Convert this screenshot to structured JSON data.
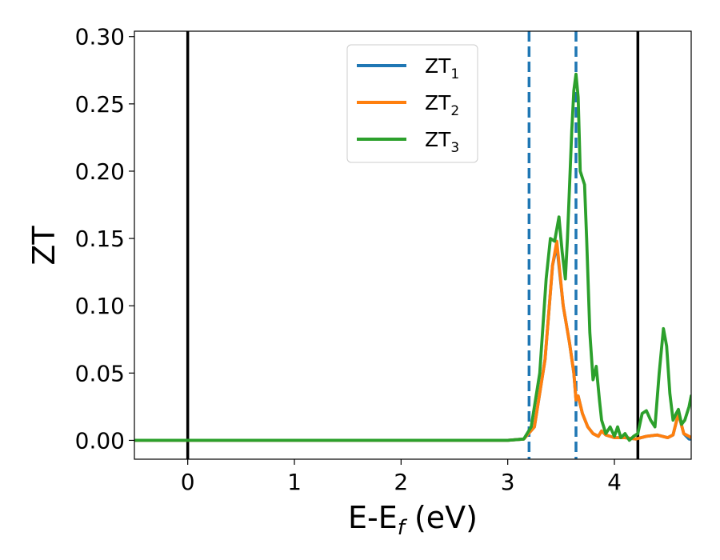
{
  "chart_data": {
    "type": "line",
    "xlabel": {
      "main": "E-E",
      "sub": "f",
      "unit": " (eV)"
    },
    "ylabel": "ZT",
    "xlim": [
      -0.5,
      4.72
    ],
    "ylim": [
      -0.014,
      0.304
    ],
    "xticks": [
      0,
      1,
      2,
      3,
      4
    ],
    "xtick_labels": [
      "0",
      "1",
      "2",
      "3",
      "4"
    ],
    "yticks": [
      0.0,
      0.05,
      0.1,
      0.15,
      0.2,
      0.25,
      0.3
    ],
    "ytick_labels": [
      "0.00",
      "0.05",
      "0.10",
      "0.15",
      "0.20",
      "0.25",
      "0.30"
    ],
    "grid": false,
    "legend_position": "upper center",
    "vlines": [
      {
        "x": 0.0,
        "style": "solid",
        "color": "#000000"
      },
      {
        "x": 4.22,
        "style": "solid",
        "color": "#000000"
      },
      {
        "x": 3.2,
        "style": "dashed",
        "color": "#1f77b4"
      },
      {
        "x": 3.64,
        "style": "dashed",
        "color": "#1f77b4"
      }
    ],
    "series": [
      {
        "name": "ZT",
        "sub": "1",
        "color": "#1f77b4",
        "x": [
          -0.5,
          3.0,
          3.15,
          3.25,
          3.35,
          3.42,
          3.46,
          3.52,
          3.58,
          3.62,
          3.64,
          3.66,
          3.7,
          3.75,
          3.8,
          3.85,
          3.88,
          3.92,
          4.0,
          4.1,
          4.2,
          4.3,
          4.4,
          4.5,
          4.55,
          4.6,
          4.65,
          4.7,
          4.72
        ],
        "y": [
          0.0,
          0.0,
          0.001,
          0.01,
          0.06,
          0.13,
          0.145,
          0.1,
          0.072,
          0.05,
          0.03,
          0.033,
          0.02,
          0.01,
          0.005,
          0.003,
          0.007,
          0.004,
          0.002,
          0.002,
          0.001,
          0.003,
          0.004,
          0.002,
          0.004,
          0.02,
          0.005,
          0.001,
          0.001
        ]
      },
      {
        "name": "ZT",
        "sub": "2",
        "color": "#ff7f0e",
        "x": [
          -0.5,
          3.0,
          3.15,
          3.25,
          3.35,
          3.42,
          3.46,
          3.52,
          3.58,
          3.62,
          3.64,
          3.66,
          3.7,
          3.75,
          3.8,
          3.85,
          3.88,
          3.92,
          4.0,
          4.1,
          4.2,
          4.3,
          4.4,
          4.5,
          4.55,
          4.6,
          4.65,
          4.7,
          4.72
        ],
        "y": [
          0.0,
          0.0,
          0.001,
          0.01,
          0.06,
          0.13,
          0.148,
          0.1,
          0.072,
          0.05,
          0.03,
          0.033,
          0.02,
          0.01,
          0.005,
          0.003,
          0.007,
          0.004,
          0.002,
          0.002,
          0.001,
          0.003,
          0.004,
          0.002,
          0.004,
          0.02,
          0.005,
          0.003,
          0.002
        ]
      },
      {
        "name": "ZT",
        "sub": "3",
        "color": "#2ca02c",
        "x": [
          -0.5,
          3.0,
          3.15,
          3.22,
          3.3,
          3.36,
          3.4,
          3.44,
          3.48,
          3.51,
          3.54,
          3.56,
          3.58,
          3.6,
          3.62,
          3.64,
          3.66,
          3.68,
          3.7,
          3.72,
          3.74,
          3.77,
          3.8,
          3.83,
          3.86,
          3.88,
          3.92,
          3.96,
          4.0,
          4.03,
          4.06,
          4.1,
          4.14,
          4.18,
          4.22,
          4.26,
          4.3,
          4.34,
          4.38,
          4.42,
          4.46,
          4.49,
          4.52,
          4.55,
          4.58,
          4.6,
          4.63,
          4.66,
          4.7,
          4.72
        ],
        "y": [
          0.0,
          0.0,
          0.001,
          0.01,
          0.05,
          0.12,
          0.15,
          0.148,
          0.166,
          0.14,
          0.12,
          0.15,
          0.19,
          0.23,
          0.26,
          0.272,
          0.255,
          0.2,
          0.195,
          0.19,
          0.15,
          0.08,
          0.045,
          0.055,
          0.03,
          0.015,
          0.005,
          0.01,
          0.003,
          0.01,
          0.002,
          0.005,
          0.0,
          0.003,
          0.005,
          0.02,
          0.022,
          0.015,
          0.01,
          0.05,
          0.083,
          0.07,
          0.035,
          0.015,
          0.02,
          0.023,
          0.012,
          0.015,
          0.025,
          0.033
        ]
      }
    ]
  }
}
